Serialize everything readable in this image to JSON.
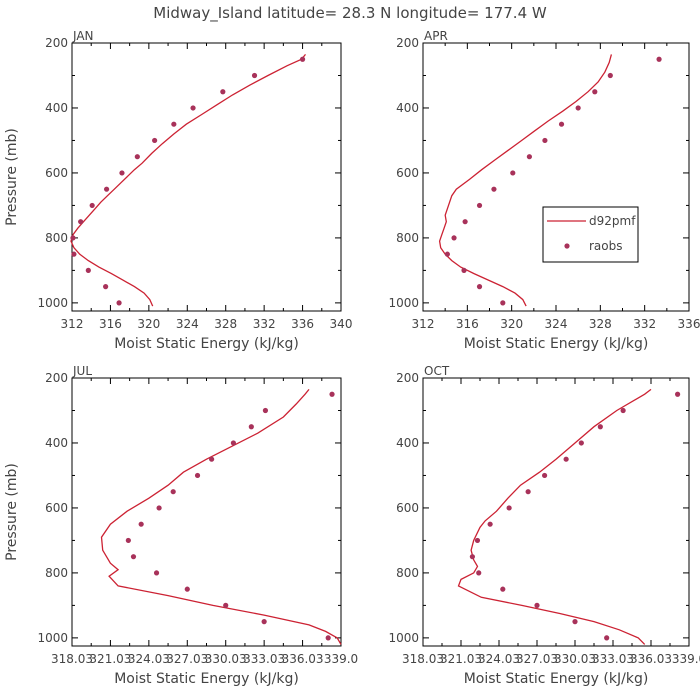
{
  "page_title": "Midway_Island  latitude= 28.3 N longitude= 177.4 W",
  "colors": {
    "model": "#cc2233",
    "obs": "#a8325a",
    "text": "#444444",
    "axis": "#000000"
  },
  "chart_data": [
    {
      "type": "line",
      "panel_label": "JAN",
      "xlabel": "Moist Static Energy (kJ/kg)",
      "ylabel": "Pressure (mb)",
      "xlim": [
        312,
        340
      ],
      "ylim": [
        1025,
        200
      ],
      "x_ticks": [
        312,
        316,
        320,
        324,
        328,
        332,
        336,
        340
      ],
      "x_tick_labels": [
        "312",
        "316",
        "320",
        "324",
        "328",
        "332",
        "336",
        "340"
      ],
      "y_ticks": [
        200,
        400,
        600,
        800,
        1000
      ],
      "y_tick_labels": [
        "200",
        "400",
        "600",
        "800",
        "1000"
      ],
      "legend": null,
      "series": [
        {
          "kind": "line",
          "points": [
            [
              320.4,
              1010
            ],
            [
              320.1,
              990
            ],
            [
              319.5,
              970
            ],
            [
              318.5,
              950
            ],
            [
              317.3,
              930
            ],
            [
              316.1,
              910
            ],
            [
              314.8,
              890
            ],
            [
              313.7,
              870
            ],
            [
              312.8,
              850
            ],
            [
              312.2,
              830
            ],
            [
              311.9,
              810
            ],
            [
              312.1,
              790
            ],
            [
              312.6,
              770
            ],
            [
              313.2,
              750
            ],
            [
              313.8,
              730
            ],
            [
              314.4,
              710
            ],
            [
              315.0,
              690
            ],
            [
              315.7,
              670
            ],
            [
              316.4,
              650
            ],
            [
              317.1,
              630
            ],
            [
              317.8,
              610
            ],
            [
              318.5,
              590
            ],
            [
              319.3,
              570
            ],
            [
              320.3,
              540
            ],
            [
              321.4,
              510
            ],
            [
              322.6,
              480
            ],
            [
              323.9,
              450
            ],
            [
              325.5,
              420
            ],
            [
              327.1,
              390
            ],
            [
              328.7,
              360
            ],
            [
              330.5,
              330
            ],
            [
              332.4,
              300
            ],
            [
              334.4,
              270
            ],
            [
              335.9,
              250
            ],
            [
              336.3,
              235
            ]
          ]
        },
        {
          "kind": "scatter",
          "points": [
            [
              316.9,
              1000
            ],
            [
              315.5,
              950
            ],
            [
              313.7,
              900
            ],
            [
              312.2,
              850
            ],
            [
              312.1,
              800
            ],
            [
              312.9,
              750
            ],
            [
              314.1,
              700
            ],
            [
              315.6,
              650
            ],
            [
              317.2,
              600
            ],
            [
              318.8,
              550
            ],
            [
              320.6,
              500
            ],
            [
              322.6,
              450
            ],
            [
              324.6,
              400
            ],
            [
              327.7,
              350
            ],
            [
              331.0,
              300
            ],
            [
              336.0,
              250
            ]
          ]
        }
      ]
    },
    {
      "type": "line",
      "panel_label": "APR",
      "xlabel": "Moist Static Energy (kJ/kg)",
      "ylabel": "",
      "xlim": [
        312,
        336
      ],
      "ylim": [
        1025,
        200
      ],
      "x_ticks": [
        312,
        316,
        320,
        324,
        328,
        332,
        336
      ],
      "x_tick_labels": [
        "312",
        "316",
        "320",
        "324",
        "328",
        "332",
        "336"
      ],
      "y_ticks": [
        200,
        400,
        600,
        800,
        1000
      ],
      "y_tick_labels": [
        "200",
        "400",
        "600",
        "800",
        "1000"
      ],
      "legend": {
        "entries": [
          "d92pmf",
          "raobs"
        ],
        "placement": "right"
      },
      "series": [
        {
          "name": "d92pmf",
          "kind": "line",
          "points": [
            [
              321.3,
              1010
            ],
            [
              321.0,
              990
            ],
            [
              320.3,
              970
            ],
            [
              319.2,
              950
            ],
            [
              317.9,
              930
            ],
            [
              316.6,
              910
            ],
            [
              315.4,
              890
            ],
            [
              314.6,
              870
            ],
            [
              314.0,
              850
            ],
            [
              313.6,
              830
            ],
            [
              313.5,
              810
            ],
            [
              313.7,
              790
            ],
            [
              313.9,
              770
            ],
            [
              314.1,
              750
            ],
            [
              314.0,
              730
            ],
            [
              314.2,
              710
            ],
            [
              314.4,
              690
            ],
            [
              314.6,
              670
            ],
            [
              315.0,
              650
            ],
            [
              316.2,
              620
            ],
            [
              317.3,
              590
            ],
            [
              318.5,
              560
            ],
            [
              319.7,
              530
            ],
            [
              320.9,
              500
            ],
            [
              322.1,
              470
            ],
            [
              323.3,
              440
            ],
            [
              324.6,
              410
            ],
            [
              325.8,
              380
            ],
            [
              326.9,
              350
            ],
            [
              327.8,
              320
            ],
            [
              328.4,
              290
            ],
            [
              328.8,
              260
            ],
            [
              329.0,
              235
            ]
          ]
        },
        {
          "name": "raobs",
          "kind": "scatter",
          "points": [
            [
              319.2,
              1000
            ],
            [
              317.1,
              950
            ],
            [
              315.7,
              900
            ],
            [
              314.2,
              850
            ],
            [
              314.8,
              800
            ],
            [
              315.8,
              750
            ],
            [
              317.1,
              700
            ],
            [
              318.4,
              650
            ],
            [
              320.1,
              600
            ],
            [
              321.6,
              550
            ],
            [
              323.0,
              500
            ],
            [
              324.5,
              450
            ],
            [
              326.0,
              400
            ],
            [
              327.5,
              350
            ],
            [
              328.9,
              300
            ],
            [
              333.3,
              250
            ]
          ]
        }
      ]
    },
    {
      "type": "line",
      "panel_label": "JUL",
      "xlabel": "Moist Static Energy (kJ/kg)",
      "ylabel": "Pressure (mb)",
      "xlim": [
        318.0,
        339.0
      ],
      "ylim": [
        1025,
        200
      ],
      "x_ticks": [
        318.0,
        321.0,
        324.0,
        327.0,
        330.0,
        333.0,
        336.0,
        339.0
      ],
      "x_tick_labels": [
        "318.03",
        "321.03",
        "324.03",
        "327.03",
        "330.03",
        "333.03",
        "336.03",
        "339.0"
      ],
      "y_ticks": [
        200,
        400,
        600,
        800,
        1000
      ],
      "y_tick_labels": [
        "200",
        "400",
        "600",
        "800",
        "1000"
      ],
      "legend": null,
      "series": [
        {
          "kind": "line",
          "points": [
            [
              339.0,
              1020
            ],
            [
              338.7,
              1000
            ],
            [
              337.8,
              980
            ],
            [
              336.5,
              960
            ],
            [
              333.0,
              930
            ],
            [
              329.0,
              900
            ],
            [
              325.5,
              870
            ],
            [
              321.6,
              840
            ],
            [
              320.9,
              810
            ],
            [
              321.6,
              790
            ],
            [
              321.0,
              770
            ],
            [
              320.4,
              730
            ],
            [
              320.3,
              690
            ],
            [
              321.0,
              650
            ],
            [
              322.3,
              610
            ],
            [
              324.0,
              570
            ],
            [
              325.5,
              530
            ],
            [
              326.7,
              490
            ],
            [
              328.5,
              450
            ],
            [
              330.5,
              410
            ],
            [
              332.5,
              370
            ],
            [
              334.5,
              320
            ],
            [
              335.5,
              280
            ],
            [
              336.2,
              250
            ],
            [
              336.5,
              235
            ]
          ]
        },
        {
          "kind": "scatter",
          "points": [
            [
              338.0,
              1000
            ],
            [
              333.0,
              950
            ],
            [
              330.0,
              900
            ],
            [
              327.0,
              850
            ],
            [
              324.6,
              800
            ],
            [
              322.8,
              750
            ],
            [
              322.4,
              700
            ],
            [
              323.4,
              650
            ],
            [
              324.8,
              600
            ],
            [
              325.9,
              550
            ],
            [
              327.8,
              500
            ],
            [
              328.9,
              450
            ],
            [
              330.6,
              400
            ],
            [
              332.0,
              350
            ],
            [
              333.1,
              300
            ],
            [
              338.3,
              250
            ]
          ]
        }
      ]
    },
    {
      "type": "line",
      "panel_label": "OCT",
      "xlabel": "Moist Static Energy (kJ/kg)",
      "ylabel": "",
      "xlim": [
        318.0,
        339.0
      ],
      "ylim": [
        1025,
        200
      ],
      "x_ticks": [
        318.0,
        321.0,
        324.0,
        327.0,
        330.0,
        333.0,
        336.0,
        339.0
      ],
      "x_tick_labels": [
        "318.03",
        "321.03",
        "324.03",
        "327.03",
        "330.03",
        "333.03",
        "336.03",
        "339.0"
      ],
      "y_ticks": [
        200,
        400,
        600,
        800,
        1000
      ],
      "y_tick_labels": [
        "200",
        "400",
        "600",
        "800",
        "1000"
      ],
      "legend": null,
      "series": [
        {
          "kind": "line",
          "points": [
            [
              335.5,
              1020
            ],
            [
              335.0,
              1000
            ],
            [
              333.5,
              975
            ],
            [
              331.5,
              950
            ],
            [
              328.8,
              925
            ],
            [
              325.8,
              900
            ],
            [
              322.6,
              875
            ],
            [
              320.8,
              840
            ],
            [
              321.0,
              820
            ],
            [
              322.0,
              800
            ],
            [
              322.3,
              780
            ],
            [
              322.0,
              760
            ],
            [
              321.8,
              730
            ],
            [
              322.0,
              700
            ],
            [
              322.5,
              660
            ],
            [
              322.9,
              640
            ],
            [
              323.8,
              610
            ],
            [
              324.7,
              570
            ],
            [
              325.7,
              530
            ],
            [
              327.2,
              490
            ],
            [
              328.5,
              450
            ],
            [
              330.0,
              400
            ],
            [
              331.5,
              350
            ],
            [
              333.3,
              300
            ],
            [
              335.5,
              250
            ],
            [
              336.0,
              235
            ]
          ]
        },
        {
          "kind": "scatter",
          "points": [
            [
              332.5,
              1000
            ],
            [
              330.0,
              950
            ],
            [
              327.0,
              900
            ],
            [
              324.3,
              850
            ],
            [
              322.4,
              800
            ],
            [
              321.9,
              750
            ],
            [
              322.3,
              700
            ],
            [
              323.3,
              650
            ],
            [
              324.8,
              600
            ],
            [
              326.3,
              550
            ],
            [
              327.6,
              500
            ],
            [
              329.3,
              450
            ],
            [
              330.5,
              400
            ],
            [
              332.0,
              350
            ],
            [
              333.8,
              300
            ],
            [
              338.1,
              250
            ]
          ]
        }
      ]
    }
  ]
}
